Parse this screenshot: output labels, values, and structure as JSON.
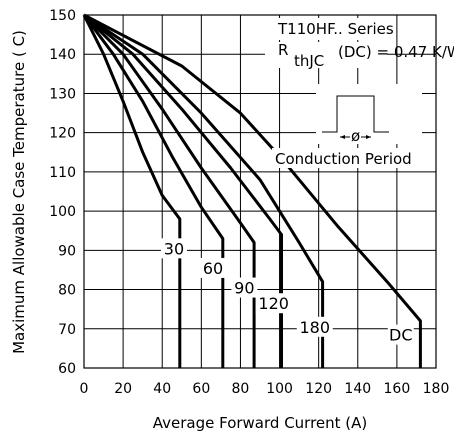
{
  "chart_data": {
    "type": "line",
    "xlabel": "Average Forward Current (A)",
    "ylabel": "Maximum Allowable Case Temperature ( C)",
    "xlim": [
      0,
      180
    ],
    "ylim": [
      60,
      150
    ],
    "xticks": [
      0,
      20,
      40,
      60,
      80,
      100,
      120,
      140,
      160,
      180
    ],
    "yticks": [
      60,
      70,
      80,
      90,
      100,
      110,
      120,
      130,
      140,
      150
    ],
    "grid": true,
    "annotations": {
      "series_title": "T110HF.. Series",
      "r_prefix": "R",
      "r_sub": "thJC",
      "r_suffix": "(DC) = 0.47 K/W",
      "waveform_symbol": "ø",
      "conduction_label": "Conduction Period"
    },
    "series": [
      {
        "name": "30",
        "points": [
          [
            0,
            150
          ],
          [
            10,
            140
          ],
          [
            20,
            128
          ],
          [
            30,
            115
          ],
          [
            40,
            104
          ],
          [
            49,
            98
          ],
          [
            49,
            60
          ]
        ]
      },
      {
        "name": "60",
        "points": [
          [
            0,
            150
          ],
          [
            15,
            140
          ],
          [
            30,
            128
          ],
          [
            45,
            114
          ],
          [
            60,
            101
          ],
          [
            71,
            93
          ],
          [
            71,
            60
          ]
        ]
      },
      {
        "name": "90",
        "points": [
          [
            0,
            150
          ],
          [
            20,
            140
          ],
          [
            40,
            126
          ],
          [
            60,
            111
          ],
          [
            80,
            97
          ],
          [
            87,
            92
          ],
          [
            87,
            60
          ]
        ]
      },
      {
        "name": "120",
        "points": [
          [
            0,
            150
          ],
          [
            25,
            140
          ],
          [
            50,
            126
          ],
          [
            75,
            111
          ],
          [
            95,
            98
          ],
          [
            101,
            94
          ],
          [
            101,
            60
          ]
        ]
      },
      {
        "name": "180",
        "points": [
          [
            0,
            150
          ],
          [
            30,
            140
          ],
          [
            60,
            125
          ],
          [
            90,
            108
          ],
          [
            110,
            92
          ],
          [
            122,
            82
          ],
          [
            122,
            60
          ]
        ]
      },
      {
        "name": "DC",
        "points": [
          [
            0,
            150
          ],
          [
            50,
            137
          ],
          [
            80,
            125
          ],
          [
            100,
            114
          ],
          [
            130,
            96
          ],
          [
            155,
            82
          ],
          [
            172,
            72
          ],
          [
            172,
            60
          ]
        ]
      }
    ],
    "curve_label_positions": {
      "30": [
        46,
        90
      ],
      "60": [
        66,
        85
      ],
      "90": [
        82,
        80
      ],
      "120": [
        97,
        76
      ],
      "180": [
        118,
        70
      ],
      "DC": [
        162,
        68
      ]
    }
  }
}
